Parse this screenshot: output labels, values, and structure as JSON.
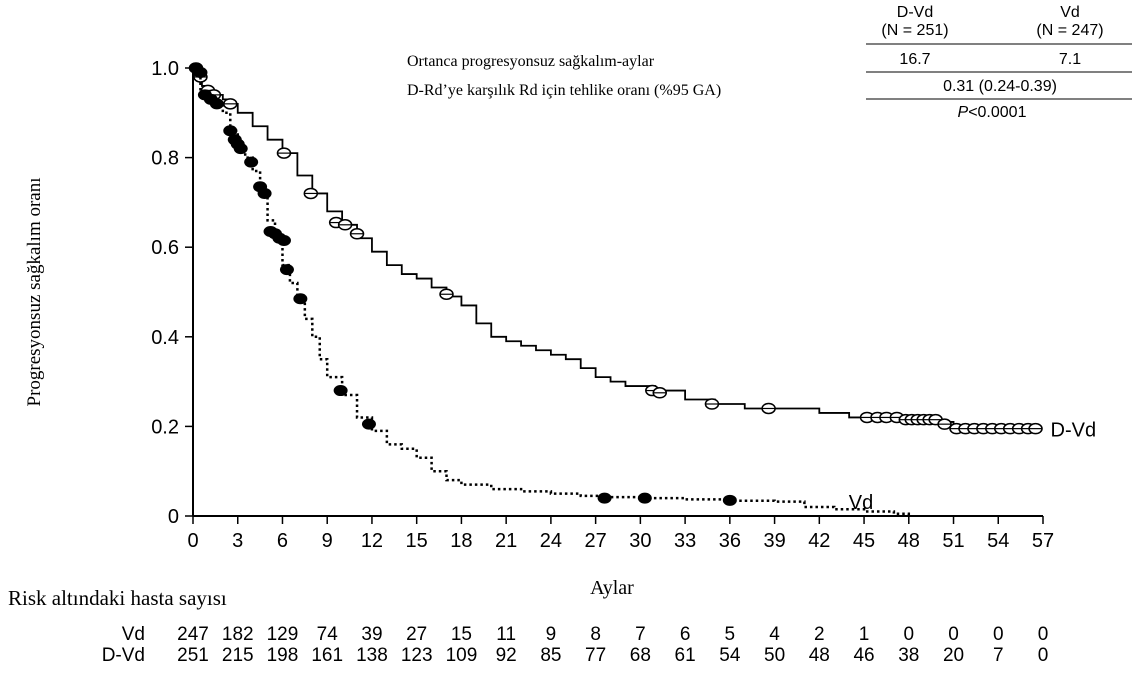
{
  "chart_data": {
    "type": "line",
    "ylabel": "Progresyonsuz sağkalım oranı",
    "xlabel": "Aylar",
    "xlim": [
      0,
      57
    ],
    "ylim": [
      0,
      1.0
    ],
    "x_ticks": [
      "0",
      "3",
      "6",
      "9",
      "12",
      "15",
      "18",
      "21",
      "24",
      "27",
      "30",
      "33",
      "36",
      "39",
      "42",
      "45",
      "48",
      "51",
      "54",
      "57"
    ],
    "y_ticks": [
      "0",
      "0.2",
      "0.4",
      "0.6",
      "0.8",
      "1.0"
    ],
    "series": [
      {
        "name": "D-Vd",
        "style": "solid",
        "color": "#000000",
        "points": [
          [
            0,
            1.0
          ],
          [
            0.3,
            0.98
          ],
          [
            0.6,
            0.96
          ],
          [
            1.0,
            0.95
          ],
          [
            1.5,
            0.94
          ],
          [
            2,
            0.93
          ],
          [
            2.5,
            0.92
          ],
          [
            3,
            0.9
          ],
          [
            4,
            0.87
          ],
          [
            5,
            0.84
          ],
          [
            6,
            0.81
          ],
          [
            7,
            0.76
          ],
          [
            8,
            0.72
          ],
          [
            9,
            0.68
          ],
          [
            10,
            0.65
          ],
          [
            11,
            0.62
          ],
          [
            12,
            0.59
          ],
          [
            13,
            0.56
          ],
          [
            14,
            0.54
          ],
          [
            15,
            0.53
          ],
          [
            16,
            0.51
          ],
          [
            17,
            0.49
          ],
          [
            18,
            0.47
          ],
          [
            19,
            0.43
          ],
          [
            20,
            0.4
          ],
          [
            21,
            0.39
          ],
          [
            22,
            0.38
          ],
          [
            23,
            0.37
          ],
          [
            24,
            0.36
          ],
          [
            25,
            0.35
          ],
          [
            26,
            0.33
          ],
          [
            27,
            0.31
          ],
          [
            28,
            0.3
          ],
          [
            29,
            0.29
          ],
          [
            31,
            0.28
          ],
          [
            33,
            0.26
          ],
          [
            35,
            0.25
          ],
          [
            37,
            0.24
          ],
          [
            39,
            0.24
          ],
          [
            42,
            0.23
          ],
          [
            44,
            0.22
          ],
          [
            46,
            0.22
          ],
          [
            48,
            0.21
          ],
          [
            50,
            0.21
          ],
          [
            51,
            0.2
          ],
          [
            52,
            0.195
          ],
          [
            56.5,
            0.195
          ]
        ],
        "censors": [
          [
            0.2,
            1.0
          ],
          [
            0.5,
            0.98
          ],
          [
            1.0,
            0.95
          ],
          [
            1.4,
            0.94
          ],
          [
            2.5,
            0.92
          ],
          [
            6.1,
            0.81
          ],
          [
            7.9,
            0.72
          ],
          [
            9.6,
            0.655
          ],
          [
            10.2,
            0.65
          ],
          [
            11,
            0.63
          ],
          [
            17,
            0.495
          ],
          [
            30.8,
            0.28
          ],
          [
            31.3,
            0.275
          ],
          [
            34.8,
            0.25
          ],
          [
            38.6,
            0.24
          ],
          [
            45.2,
            0.22
          ],
          [
            45.9,
            0.22
          ],
          [
            46.5,
            0.22
          ],
          [
            47.2,
            0.22
          ],
          [
            47.8,
            0.215
          ],
          [
            48.2,
            0.215
          ],
          [
            48.6,
            0.215
          ],
          [
            49,
            0.215
          ],
          [
            49.4,
            0.215
          ],
          [
            49.8,
            0.215
          ],
          [
            50.4,
            0.205
          ],
          [
            51.2,
            0.195
          ],
          [
            51.8,
            0.195
          ],
          [
            52.4,
            0.195
          ],
          [
            53,
            0.195
          ],
          [
            53.6,
            0.195
          ],
          [
            54.2,
            0.195
          ],
          [
            54.8,
            0.195
          ],
          [
            55.4,
            0.195
          ],
          [
            56,
            0.195
          ],
          [
            56.5,
            0.195
          ]
        ],
        "label": "D-Vd"
      },
      {
        "name": "Vd",
        "style": "dotted",
        "color": "#000000",
        "points": [
          [
            0,
            1.0
          ],
          [
            0.3,
            0.99
          ],
          [
            0.5,
            0.94
          ],
          [
            1.0,
            0.93
          ],
          [
            1.5,
            0.92
          ],
          [
            2,
            0.9
          ],
          [
            2.5,
            0.86
          ],
          [
            3,
            0.82
          ],
          [
            3.5,
            0.8
          ],
          [
            4,
            0.77
          ],
          [
            4.5,
            0.72
          ],
          [
            5,
            0.66
          ],
          [
            5.5,
            0.62
          ],
          [
            6,
            0.56
          ],
          [
            6.5,
            0.52
          ],
          [
            7,
            0.48
          ],
          [
            7.5,
            0.44
          ],
          [
            8,
            0.4
          ],
          [
            8.5,
            0.35
          ],
          [
            9,
            0.31
          ],
          [
            10,
            0.27
          ],
          [
            11,
            0.22
          ],
          [
            12,
            0.19
          ],
          [
            13,
            0.16
          ],
          [
            14,
            0.15
          ],
          [
            15,
            0.13
          ],
          [
            16,
            0.1
          ],
          [
            17,
            0.08
          ],
          [
            18,
            0.07
          ],
          [
            20,
            0.06
          ],
          [
            22,
            0.055
          ],
          [
            24,
            0.05
          ],
          [
            26,
            0.045
          ],
          [
            28,
            0.042
          ],
          [
            30,
            0.04
          ],
          [
            33,
            0.037
          ],
          [
            36,
            0.034
          ],
          [
            39,
            0.032
          ],
          [
            41,
            0.02
          ],
          [
            43,
            0.015
          ],
          [
            45,
            0.01
          ],
          [
            47,
            0.005
          ],
          [
            48,
            0.0
          ]
        ],
        "censors": [
          [
            0.2,
            1.0
          ],
          [
            0.5,
            0.99
          ],
          [
            0.8,
            0.94
          ],
          [
            1.2,
            0.93
          ],
          [
            1.6,
            0.92
          ],
          [
            2.5,
            0.86
          ],
          [
            2.8,
            0.84
          ],
          [
            3.0,
            0.83
          ],
          [
            3.2,
            0.82
          ],
          [
            3.9,
            0.79
          ],
          [
            4.5,
            0.735
          ],
          [
            4.8,
            0.72
          ],
          [
            5.2,
            0.635
          ],
          [
            5.5,
            0.63
          ],
          [
            5.8,
            0.62
          ],
          [
            6.1,
            0.615
          ],
          [
            6.3,
            0.55
          ],
          [
            7.2,
            0.485
          ],
          [
            9.9,
            0.28
          ],
          [
            11.8,
            0.205
          ],
          [
            27.6,
            0.04
          ],
          [
            30.3,
            0.04
          ],
          [
            36,
            0.035
          ]
        ],
        "label": "Vd"
      }
    ],
    "summary_table": {
      "col1_header": "D-Vd",
      "col1_n": "(N = 251)",
      "col2_header": "Vd",
      "col2_n": "(N = 247)",
      "row1_label": "Ortanca progresyonsuz sağkalım-aylar",
      "row1_v1": "16.7",
      "row1_v2": "7.1",
      "row2_label": "D-Rd’ye karşılık Rd için tehlike oranı (%95 GA)",
      "row2_value": "0.31 (0.24-0.39)",
      "row3_p": "P",
      "row3_value": "<0.0001"
    },
    "risk_table": {
      "title": "Risk altındaki hasta sayısı",
      "rows": [
        {
          "label": "Vd",
          "values": [
            "247",
            "182",
            "129",
            "74",
            "39",
            "27",
            "15",
            "11",
            "9",
            "8",
            "7",
            "6",
            "5",
            "4",
            "2",
            "1",
            "0",
            "0",
            "0",
            "0"
          ]
        },
        {
          "label": "D-Vd",
          "values": [
            "251",
            "215",
            "198",
            "161",
            "138",
            "123",
            "109",
            "92",
            "85",
            "77",
            "68",
            "61",
            "54",
            "50",
            "48",
            "46",
            "38",
            "20",
            "7",
            "0"
          ]
        }
      ]
    }
  }
}
